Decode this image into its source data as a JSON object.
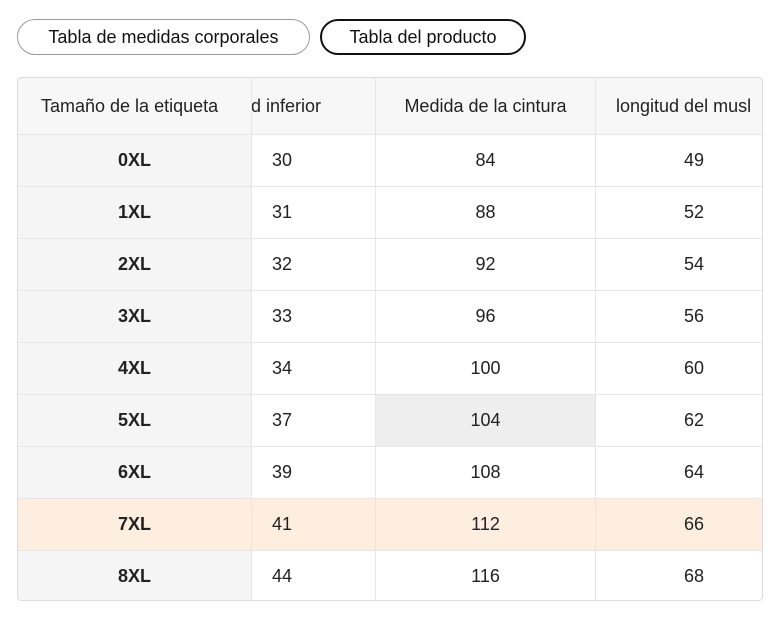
{
  "tabs": [
    {
      "label": "Tabla de medidas corporales",
      "active": false
    },
    {
      "label": "Tabla del producto",
      "active": true
    }
  ],
  "table": {
    "headers": [
      "Tamaño de la etiqueta",
      "Longitud inferior",
      "Medida de la cintura",
      "longitud del muslo"
    ],
    "headers_visible": [
      "Tamaño de la etiqueta",
      "gitud inferior",
      "Medida de la cintura",
      "longitud del musl"
    ],
    "rows": [
      [
        "0XL",
        "30",
        "84",
        "49"
      ],
      [
        "1XL",
        "31",
        "88",
        "52"
      ],
      [
        "2XL",
        "32",
        "92",
        "54"
      ],
      [
        "3XL",
        "33",
        "96",
        "56"
      ],
      [
        "4XL",
        "34",
        "100",
        "60"
      ],
      [
        "5XL",
        "37",
        "104",
        "62"
      ],
      [
        "6XL",
        "39",
        "108",
        "64"
      ],
      [
        "7XL",
        "41",
        "112",
        "66"
      ],
      [
        "8XL",
        "44",
        "116",
        "68"
      ]
    ],
    "highlighted_row_index": 7,
    "hovered_cell": {
      "row": 5,
      "col": 2
    },
    "colors": {
      "highlight_row": "#fdeee0",
      "sticky_column": "#f5f5f5",
      "hover_cell": "#eeeeee"
    }
  }
}
